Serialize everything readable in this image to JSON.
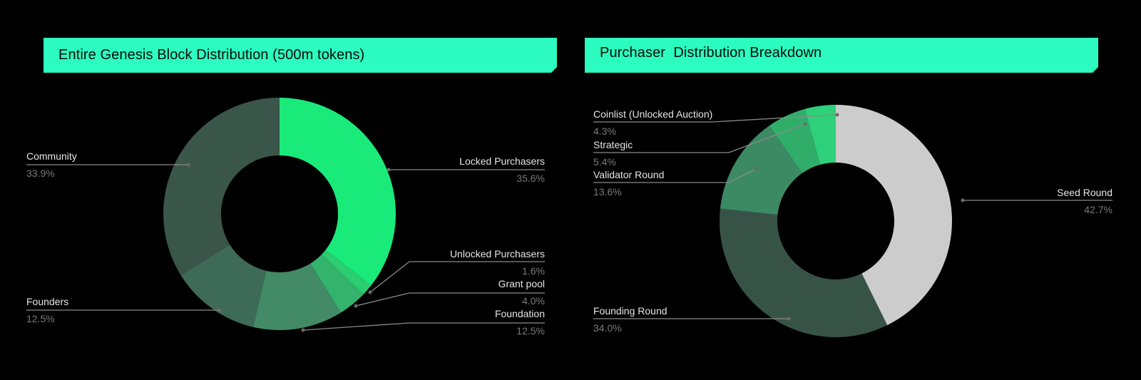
{
  "chart_data": [
    {
      "type": "pie",
      "variant": "donut",
      "title": "Entire Genesis Block Distribution (500m tokens)",
      "categories": [
        "Locked Purchasers",
        "Unlocked Purchasers",
        "Grant pool",
        "Foundation",
        "Founders",
        "Community"
      ],
      "values": [
        35.6,
        1.6,
        4.0,
        12.5,
        12.5,
        33.9
      ],
      "value_labels": [
        "35.6%",
        "1.6%",
        "4.0%",
        "12.5%",
        "12.5%",
        "33.9%"
      ],
      "colors": [
        "#19ea7a",
        "#2bce71",
        "#33b36b",
        "#428b66",
        "#3e6b57",
        "#3a5549"
      ],
      "start_angle_deg": 0,
      "direction": "clockwise",
      "legend": "callout labels"
    },
    {
      "type": "pie",
      "variant": "donut",
      "title": "Purchaser  Distribution Breakdown",
      "categories": [
        "Seed Round",
        "Founding Round",
        "Validator Round",
        "Strategic",
        "Coinlist (Unlocked Auction)"
      ],
      "values": [
        42.7,
        34.0,
        13.6,
        5.4,
        4.3
      ],
      "value_labels": [
        "42.7%",
        "34.0%",
        "13.6%",
        "5.4%",
        "4.3%"
      ],
      "colors": [
        "#cccccc",
        "#375347",
        "#3c8a64",
        "#31ad6a",
        "#2fd07a"
      ],
      "start_angle_deg": 0,
      "direction": "clockwise",
      "legend": "callout labels"
    }
  ],
  "charts": {
    "left": {
      "title": "Entire Genesis Block Distribution (500m tokens)",
      "labels": {
        "locked": {
          "name": "Locked Purchasers",
          "pct": "35.6%"
        },
        "unlocked": {
          "name": "Unlocked Purchasers",
          "pct": "1.6%"
        },
        "grant": {
          "name": "Grant pool",
          "pct": "4.0%"
        },
        "foundation": {
          "name": "Foundation",
          "pct": "12.5%"
        },
        "founders": {
          "name": "Founders",
          "pct": "12.5%"
        },
        "community": {
          "name": "Community",
          "pct": "33.9%"
        }
      }
    },
    "right": {
      "title": "Purchaser  Distribution Breakdown",
      "labels": {
        "seed": {
          "name": "Seed Round",
          "pct": "42.7%"
        },
        "founding": {
          "name": "Founding Round",
          "pct": "34.0%"
        },
        "validator": {
          "name": "Validator Round",
          "pct": "13.6%"
        },
        "strategic": {
          "name": "Strategic",
          "pct": "5.4%"
        },
        "coinlist": {
          "name": "Coinlist (Unlocked Auction)",
          "pct": "4.3%"
        }
      }
    }
  },
  "theme": {
    "banner_color": "#2cfcc0",
    "background": "#000000",
    "leader_line_color": "#8a8a8a"
  }
}
